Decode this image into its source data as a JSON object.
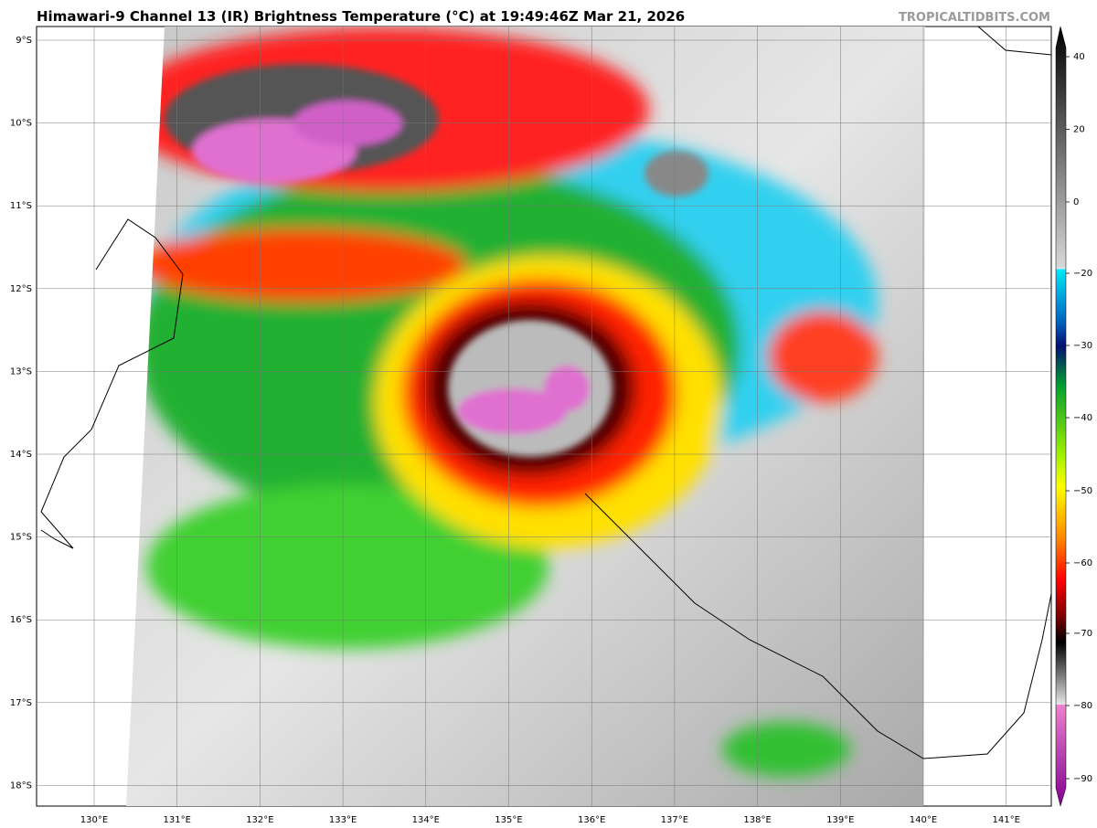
{
  "header": {
    "title": "Himawari-9 Channel 13 (IR) Brightness Temperature (°C) at 19:49:46Z Mar 21, 2026",
    "watermark": "TROPICALTIDBITS.COM"
  },
  "map": {
    "lat_labels": [
      "9°S",
      "10°S",
      "11°S",
      "12°S",
      "13°S",
      "14°S",
      "15°S",
      "16°S",
      "17°S",
      "18°S"
    ],
    "lon_labels": [
      "130°E",
      "131°E",
      "132°E",
      "133°E",
      "134°E",
      "135°E",
      "136°E",
      "137°E",
      "138°E",
      "139°E",
      "140°E",
      "141°E"
    ]
  },
  "colorbar": {
    "labels": [
      "40",
      "20",
      "0",
      "−20",
      "−30",
      "−40",
      "−50",
      "−60",
      "−70",
      "−80",
      "−90"
    ]
  }
}
